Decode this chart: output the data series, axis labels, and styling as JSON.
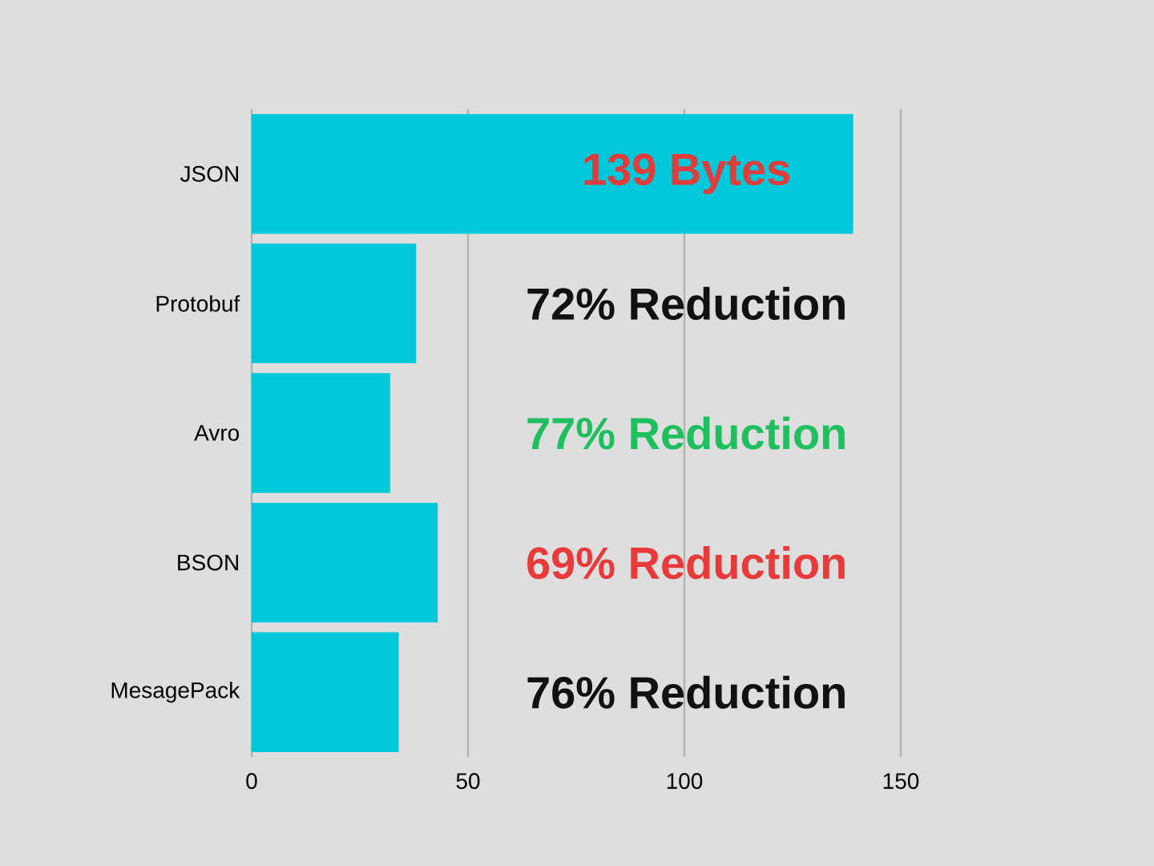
{
  "chart_data": {
    "type": "bar",
    "orientation": "horizontal",
    "categories": [
      "JSON",
      "Protobuf",
      "Avro",
      "BSON",
      "MesagePack"
    ],
    "values": [
      139,
      38,
      32,
      43,
      34
    ],
    "color": "#00c8d8",
    "xlim": [
      0,
      150
    ],
    "xticks": [
      0,
      50,
      100,
      150
    ],
    "grid": "x",
    "annotations": [
      "139 Bytes",
      "72% Reduction",
      "77% Reduction",
      "69% Reduction",
      "76% Reduction"
    ]
  }
}
